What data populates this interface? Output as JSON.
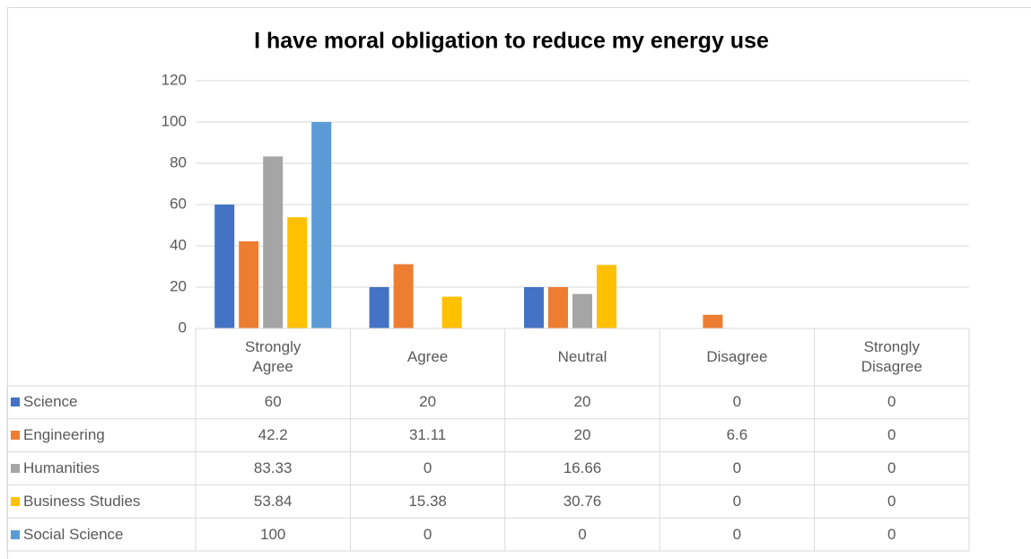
{
  "chart_data": {
    "type": "bar",
    "title": "I have moral obligation to reduce my energy use",
    "categories": [
      "Strongly Agree",
      "Agree",
      "Neutral",
      "Disagree",
      "Strongly Disagree"
    ],
    "series": [
      {
        "name": "Science",
        "color": "#4472c4",
        "values": [
          60,
          20,
          20,
          0,
          0
        ]
      },
      {
        "name": "Engineering",
        "color": "#ed7d31",
        "values": [
          42.2,
          31.11,
          20,
          6.6,
          0
        ]
      },
      {
        "name": "Humanities",
        "color": "#a5a5a5",
        "values": [
          83.33,
          0,
          16.66,
          0,
          0
        ]
      },
      {
        "name": "Business Studies",
        "color": "#ffc000",
        "values": [
          53.84,
          15.38,
          30.76,
          0,
          0
        ]
      },
      {
        "name": "Social Science",
        "color": "#5b9bd5",
        "values": [
          100,
          0,
          0,
          0,
          0
        ]
      }
    ],
    "ylim": [
      0,
      120
    ],
    "yticks": [
      0,
      20,
      40,
      60,
      80,
      100,
      120
    ],
    "grid": true,
    "data_table": true
  }
}
